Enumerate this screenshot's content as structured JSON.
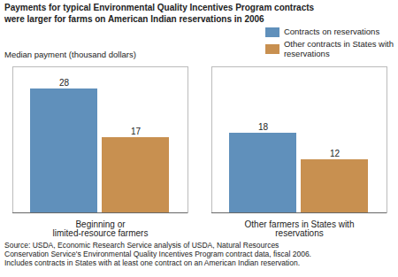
{
  "chart_data": {
    "type": "bar",
    "title": "Payments for typical Environmental Quality Incentives Program contracts\nwere larger for farms on American Indian reservations in 2006",
    "ylabel": "Median payment (thousand dollars)",
    "categories": [
      "Beginning or\nlimited-resource farmers",
      "Other farmers in States with\nreservations"
    ],
    "series": [
      {
        "name": "Contracts on reservations",
        "color": "#6090bb",
        "values": [
          28,
          18
        ]
      },
      {
        "name": "Other contracts in States with\nreservations",
        "color": "#c89050",
        "values": [
          17,
          12
        ]
      }
    ],
    "ylim": [
      0,
      33
    ],
    "grid": false,
    "legend": "upper right",
    "data_labels": true,
    "tick_labels": "x",
    "annotations": [
      "Source: USDA, Economic Research Service analysis of USDA, Natural Resources\nConservation Service's Environmental Quality Incentives Program contract data, fiscal 2006.\nIncludes contracts in States with at least one contract on an American Indian reservation."
    ]
  }
}
